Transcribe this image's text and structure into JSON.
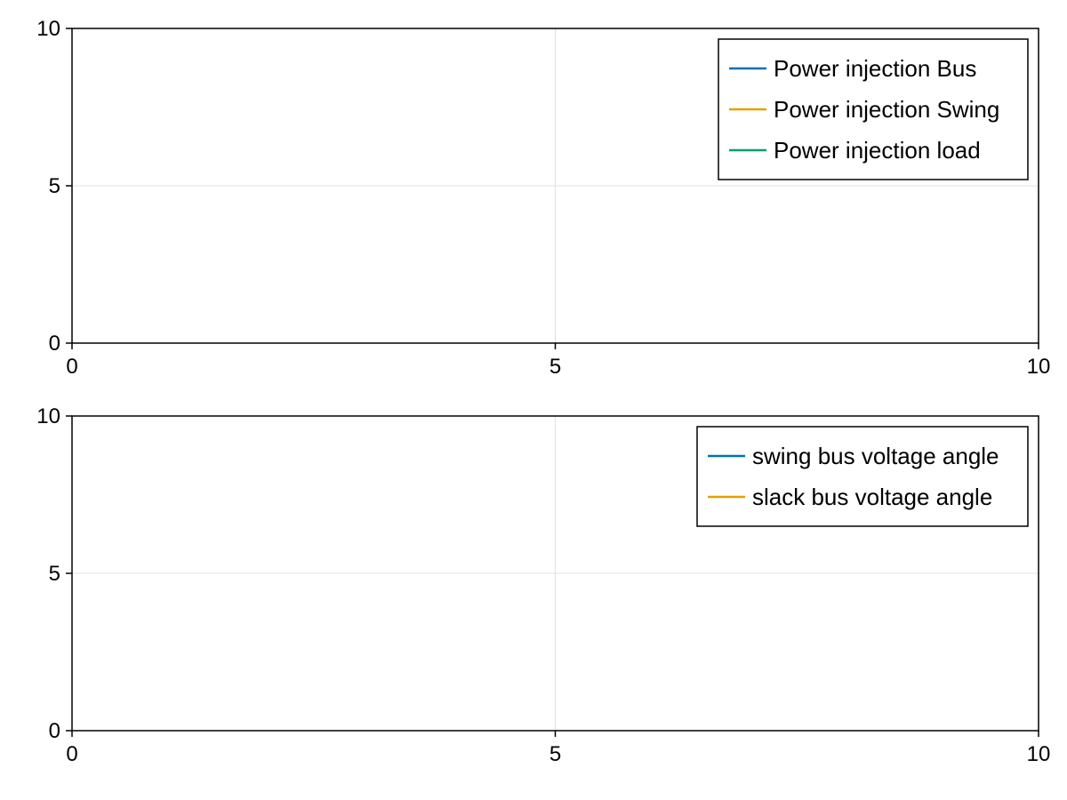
{
  "colors": {
    "background": "#ffffff",
    "axis": "#000000",
    "grid": "#e0e0e0",
    "legend_border": "#000000"
  },
  "chart_data": [
    {
      "type": "line",
      "xlim": [
        0,
        10
      ],
      "ylim": [
        0,
        10
      ],
      "xticks": [
        0,
        5,
        10
      ],
      "yticks": [
        0,
        5,
        10
      ],
      "grid": true,
      "legend_position": "top-right",
      "series": [
        {
          "name": "Power injection Bus",
          "color": "#0072b2",
          "x": [],
          "y": []
        },
        {
          "name": "Power injection Swing",
          "color": "#e69f00",
          "x": [],
          "y": []
        },
        {
          "name": "Power injection load",
          "color": "#009e73",
          "x": [],
          "y": []
        }
      ]
    },
    {
      "type": "line",
      "xlim": [
        0,
        10
      ],
      "ylim": [
        0,
        10
      ],
      "xticks": [
        0,
        5,
        10
      ],
      "yticks": [
        0,
        5,
        10
      ],
      "grid": true,
      "legend_position": "top-right",
      "series": [
        {
          "name": "swing bus voltage angle",
          "color": "#0072b2",
          "x": [],
          "y": []
        },
        {
          "name": "slack bus voltage angle",
          "color": "#e69f00",
          "x": [],
          "y": []
        }
      ]
    }
  ]
}
